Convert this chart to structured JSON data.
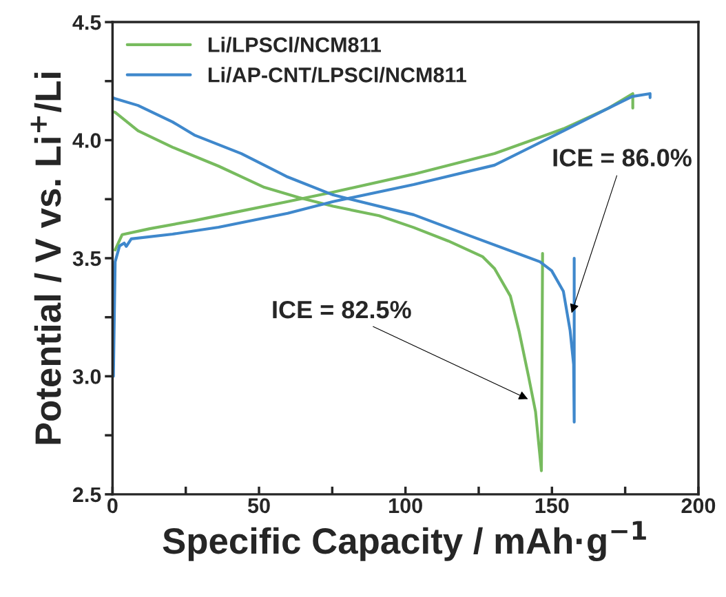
{
  "chart_data": {
    "type": "line",
    "xlabel": "Specific Capacity / mAh·g$^{−1}$",
    "ylabel": "Potential / V vs. Li$^{+}$/Li",
    "xlim": [
      0,
      200
    ],
    "xticks": [
      0,
      {
        "value": 25,
        "label": null
      },
      50,
      {
        "value": 75,
        "label": null
      },
      100,
      {
        "value": 125,
        "label": null
      },
      150,
      {
        "value": 175,
        "label": null
      },
      200
    ],
    "ylim": [
      2.5,
      4.5
    ],
    "yticks": [
      2.5,
      {
        "value": 2.75,
        "label": null
      },
      {
        "value": 3,
        "label": "3.0"
      },
      {
        "value": 3.25,
        "label": null
      },
      3.5,
      {
        "value": 3.75,
        "label": null
      },
      {
        "value": 4,
        "label": "4.0"
      },
      {
        "value": 4.25,
        "label": null
      },
      4.5
    ],
    "grid": false,
    "legend": "top left",
    "marker": "none",
    "line_style": "solid",
    "series": [
      {
        "name": "Li/LPSCl/NCM811",
        "color": "#77bb5e",
        "x": [
          0.9,
          3.3,
          12.7,
          28.2,
          44,
          59.8,
          75.3,
          102.8,
          130.4,
          153.9,
          169.4,
          177.6,
          177.6
        ],
        "values": [
          3.535,
          3.6,
          3.625,
          3.66,
          3.7,
          3.74,
          3.78,
          3.856,
          3.943,
          4.048,
          4.136,
          4.197,
          4.136
        ]
      },
      {
        "color": "#77bb5e",
        "x": [
          0,
          0.9,
          8.7,
          20.5,
          36.2,
          51.8,
          63.5,
          75.3,
          91,
          102.8,
          114.6,
          126.4,
          130.4,
          135.8,
          138.8,
          142,
          144.4,
          146.4,
          146.8
        ],
        "values": [
          4.12,
          4.118,
          4.04,
          3.97,
          3.89,
          3.8,
          3.757,
          3.72,
          3.68,
          3.63,
          3.573,
          3.506,
          3.456,
          3.34,
          3.19,
          3.0,
          2.85,
          2.6,
          3.52
        ]
      },
      {
        "name": "Li/AP-CNT/LPSCl/NCM811",
        "color": "#3f88cc",
        "x": [
          0.3,
          0.9,
          2.4,
          4,
          4.7,
          6.4,
          20.5,
          36.2,
          59.8,
          75.3,
          102.8,
          130.4,
          153.9,
          169.4,
          177.4,
          183.5,
          183.5
        ],
        "values": [
          3.0,
          3.485,
          3.552,
          3.564,
          3.55,
          3.582,
          3.602,
          3.631,
          3.69,
          3.74,
          3.812,
          3.894,
          4.039,
          4.136,
          4.185,
          4.197,
          4.18
        ]
      },
      {
        "color": "#3f88cc",
        "x": [
          0,
          0.9,
          8.7,
          20.5,
          28.2,
          44,
          59.8,
          75.3,
          102.8,
          122.4,
          145.9,
          149.9,
          153.9,
          156.2,
          157.4,
          157.6,
          157.6
        ],
        "values": [
          4.18,
          4.176,
          4.147,
          4.077,
          4.02,
          3.943,
          3.844,
          3.768,
          3.684,
          3.593,
          3.485,
          3.447,
          3.36,
          3.194,
          3.05,
          2.806,
          3.5
        ]
      }
    ],
    "annotations": [
      {
        "text": "ICE = 82.5%",
        "x": 142.4,
        "y": 2.9
      },
      {
        "text": "ICE = 86.0%",
        "x": 156.5,
        "y": 3.26
      }
    ]
  }
}
